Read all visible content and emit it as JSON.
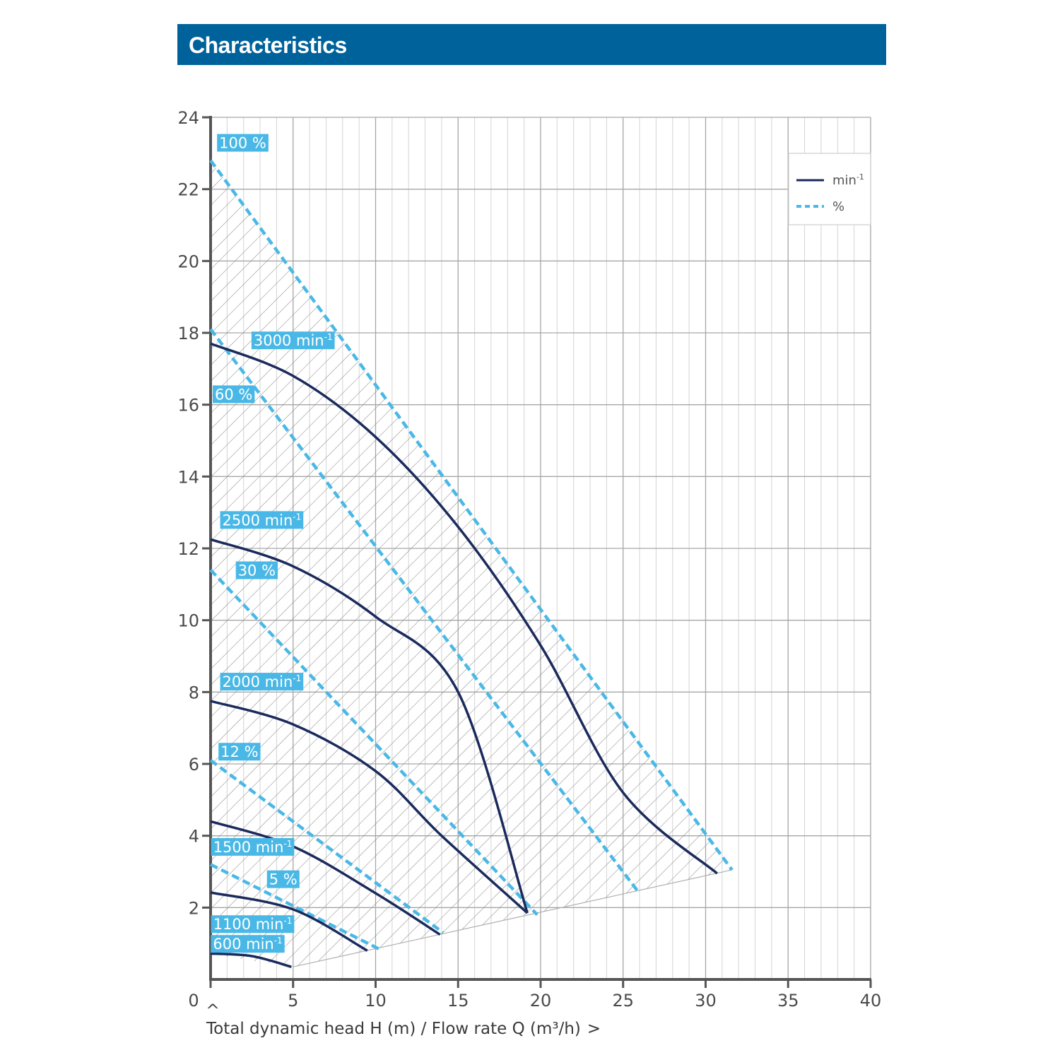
{
  "header": {
    "title": "Characteristics"
  },
  "colors": {
    "header_bg": "#00629b",
    "speed_curve": "#1a2a5c",
    "efficiency_curve": "#4ab8e6",
    "label_bg": "#4ab8e6",
    "grid_major": "#a6a6a6",
    "grid_minor": "#d4d4d4",
    "axis": "#555555",
    "hatch": "#8c8c8c"
  },
  "chart_data": {
    "type": "line",
    "title": "",
    "xlabel": "Total dynamic head H (m) / Flow rate Q (m³/h)",
    "ylabel": "",
    "xlim": [
      0,
      40
    ],
    "ylim": [
      0,
      24
    ],
    "x_ticks": [
      "0",
      "5",
      "10",
      "15",
      "20",
      "25",
      "30",
      "35",
      "40"
    ],
    "y_ticks": [
      "2",
      "4",
      "6",
      "8",
      "10",
      "12",
      "14",
      "16",
      "18",
      "20",
      "22",
      "24"
    ],
    "x_axis_marker_up": "^",
    "x_axis_marker_right": ">",
    "grid": true,
    "legend": {
      "placement": "top-right",
      "entries": [
        {
          "label": "min",
          "sup": "-1",
          "style": "solid"
        },
        {
          "label": "%",
          "style": "dashed"
        }
      ]
    },
    "operating_region": {
      "hatched": true,
      "boundary": [
        [
          0,
          22.8
        ],
        [
          31.6,
          3.05
        ],
        [
          5,
          0.35
        ],
        [
          0,
          0.7
        ]
      ]
    },
    "speed_curves": [
      {
        "name": "3000 min",
        "sup": "-1",
        "x": [
          0,
          5,
          10,
          15,
          20,
          25,
          30.7
        ],
        "y": [
          17.7,
          16.8,
          15.1,
          12.6,
          9.3,
          5.2,
          2.95
        ]
      },
      {
        "name": "2500 min",
        "sup": "-1",
        "x": [
          0,
          5,
          10,
          15,
          19.2
        ],
        "y": [
          12.25,
          11.5,
          10.1,
          8.0,
          1.85
        ]
      },
      {
        "name": "2000 min",
        "sup": "-1",
        "x": [
          0,
          5,
          10,
          14,
          19.2
        ],
        "y": [
          7.75,
          7.1,
          5.8,
          4.0,
          1.85
        ]
      },
      {
        "name": "1500 min",
        "sup": "-1",
        "x": [
          0,
          5,
          10,
          13.9
        ],
        "y": [
          4.4,
          3.7,
          2.4,
          1.25
        ]
      },
      {
        "name": "1100 min",
        "sup": "-1",
        "x": [
          0,
          5,
          9.5
        ],
        "y": [
          2.42,
          1.95,
          0.8
        ]
      },
      {
        "name": "600 min",
        "sup": "-1",
        "x": [
          0,
          2.5,
          4.9
        ],
        "y": [
          0.72,
          0.65,
          0.35
        ]
      }
    ],
    "efficiency_curves": [
      {
        "name": "100 %",
        "x": [
          0,
          31.6
        ],
        "y": [
          22.8,
          3.05
        ]
      },
      {
        "name": "60 %",
        "x": [
          0,
          25.9
        ],
        "y": [
          18.1,
          2.45
        ]
      },
      {
        "name": "30 %",
        "x": [
          0,
          19.8
        ],
        "y": [
          11.4,
          1.8
        ]
      },
      {
        "name": "12 %",
        "x": [
          0,
          14.1
        ],
        "y": [
          6.1,
          1.3
        ]
      },
      {
        "name": "5 %",
        "x": [
          0,
          10.2
        ],
        "y": [
          3.2,
          0.85
        ]
      }
    ],
    "curve_labels": [
      {
        "text": "100 %",
        "sup": "",
        "x": 1.95,
        "y": 23.3
      },
      {
        "text": "3000 min",
        "sup": "-1",
        "x": 5.0,
        "y": 17.8
      },
      {
        "text": "60 %",
        "x": 1.4,
        "y": 16.3
      },
      {
        "text": "2500 min",
        "sup": "-1",
        "x": 3.1,
        "y": 12.8
      },
      {
        "text": "30 %",
        "x": 2.8,
        "y": 11.4
      },
      {
        "text": "2000 min",
        "sup": "-1",
        "x": 3.1,
        "y": 8.3
      },
      {
        "text": "12 %",
        "x": 1.75,
        "y": 6.35
      },
      {
        "text": "1500 min",
        "sup": "-1",
        "x": 2.55,
        "y": 3.7
      },
      {
        "text": "5 %",
        "x": 4.4,
        "y": 2.8
      },
      {
        "text": "1100 min",
        "sup": "-1",
        "x": 2.55,
        "y": 1.55
      },
      {
        "text": "600 min",
        "sup": "-1",
        "x": 2.25,
        "y": 1.0
      }
    ]
  }
}
